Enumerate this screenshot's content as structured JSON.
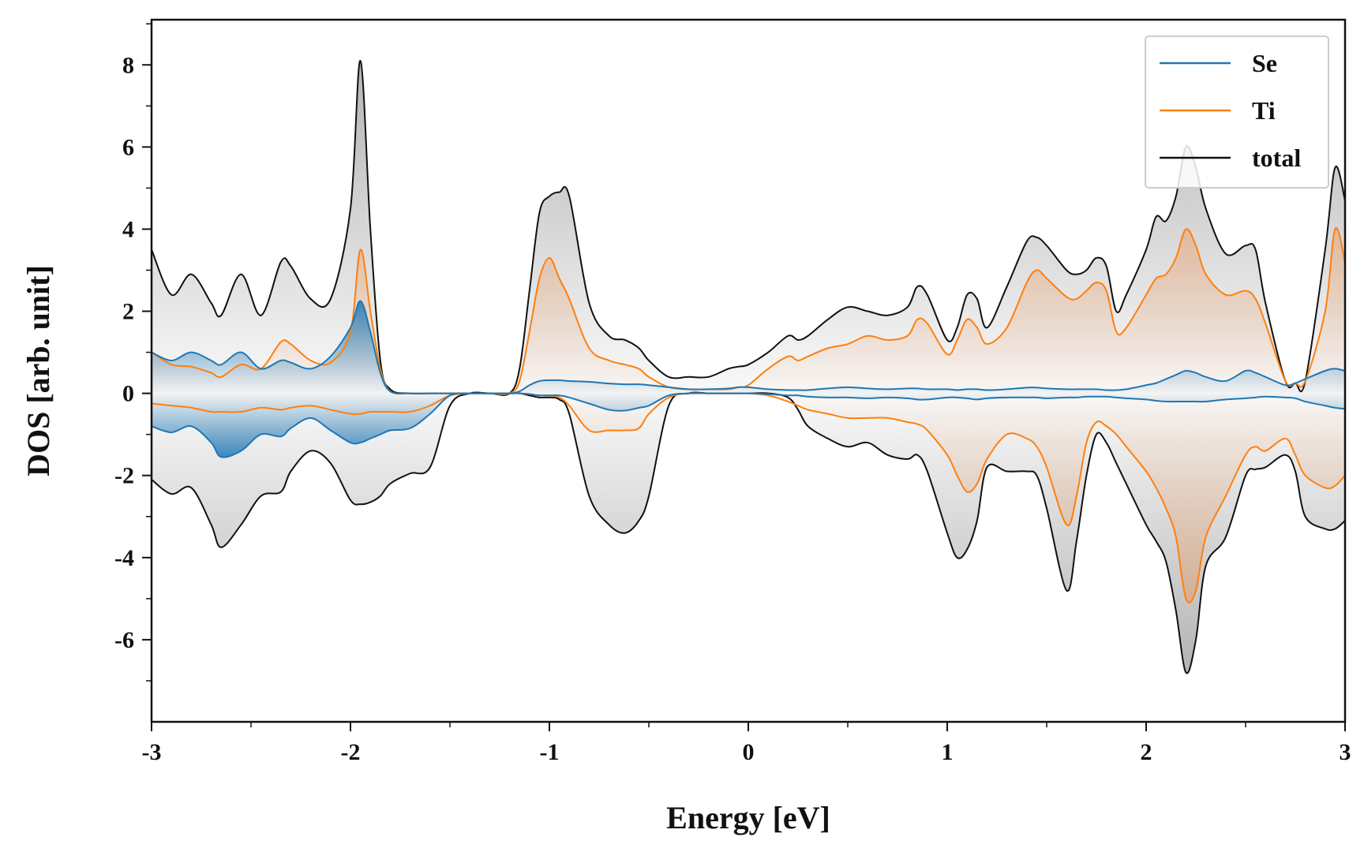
{
  "chart_data": {
    "type": "line",
    "title": "",
    "xlabel": "Energy [eV]",
    "ylabel": "DOS [arb. unit]",
    "xlim": [
      -3,
      3
    ],
    "ylim": [
      -8,
      9.1
    ],
    "xticks": [
      -3,
      -2,
      -1,
      0,
      1,
      2,
      3
    ],
    "xtick_labels": [
      "-3",
      "-2",
      "-1",
      "0",
      "1",
      "2",
      "3"
    ],
    "yticks": [
      -6,
      -4,
      -2,
      0,
      2,
      4,
      6,
      8
    ],
    "ytick_labels": [
      "-6",
      "-4",
      "-2",
      "0",
      "2",
      "4",
      "6",
      "8"
    ],
    "grid": false,
    "legend_position": "top-right",
    "x": [
      -3.0,
      -2.9,
      -2.8,
      -2.7,
      -2.65,
      -2.55,
      -2.45,
      -2.35,
      -2.3,
      -2.2,
      -2.1,
      -2.0,
      -1.95,
      -1.9,
      -1.85,
      -1.8,
      -1.7,
      -1.6,
      -1.5,
      -1.4,
      -1.3,
      -1.2,
      -1.15,
      -1.1,
      -1.05,
      -1.0,
      -0.95,
      -0.9,
      -0.8,
      -0.7,
      -0.62,
      -0.55,
      -0.5,
      -0.4,
      -0.3,
      -0.2,
      -0.1,
      -0.05,
      0.0,
      0.1,
      0.2,
      0.25,
      0.3,
      0.4,
      0.5,
      0.6,
      0.7,
      0.8,
      0.85,
      0.9,
      1.0,
      1.05,
      1.1,
      1.15,
      1.2,
      1.3,
      1.4,
      1.45,
      1.5,
      1.6,
      1.65,
      1.7,
      1.75,
      1.8,
      1.85,
      1.9,
      2.0,
      2.05,
      2.1,
      2.15,
      2.2,
      2.25,
      2.3,
      2.4,
      2.5,
      2.55,
      2.6,
      2.7,
      2.75,
      2.8,
      2.9,
      2.95,
      3.0
    ],
    "series": [
      {
        "name": "Se",
        "color": "#1f77b4",
        "up": [
          1.0,
          0.8,
          1.0,
          0.8,
          0.7,
          1.0,
          0.6,
          0.8,
          0.75,
          0.6,
          0.9,
          1.6,
          2.25,
          1.5,
          0.5,
          0.05,
          0.0,
          0.0,
          0.0,
          0.0,
          0.0,
          0.0,
          0.05,
          0.2,
          0.3,
          0.32,
          0.32,
          0.3,
          0.28,
          0.24,
          0.22,
          0.22,
          0.2,
          0.15,
          0.1,
          0.1,
          0.12,
          0.15,
          0.15,
          0.1,
          0.08,
          0.08,
          0.08,
          0.12,
          0.15,
          0.12,
          0.1,
          0.12,
          0.12,
          0.1,
          0.1,
          0.08,
          0.1,
          0.1,
          0.08,
          0.1,
          0.14,
          0.14,
          0.12,
          0.1,
          0.1,
          0.1,
          0.1,
          0.08,
          0.08,
          0.1,
          0.2,
          0.25,
          0.35,
          0.45,
          0.55,
          0.5,
          0.4,
          0.3,
          0.55,
          0.5,
          0.4,
          0.2,
          0.25,
          0.35,
          0.55,
          0.6,
          0.55
        ],
        "down": [
          -0.8,
          -0.95,
          -0.8,
          -1.2,
          -1.55,
          -1.4,
          -1.0,
          -1.05,
          -0.85,
          -0.6,
          -0.9,
          -1.2,
          -1.2,
          -1.1,
          -1.0,
          -0.9,
          -0.85,
          -0.5,
          -0.05,
          0.0,
          0.0,
          0.0,
          0.0,
          -0.02,
          -0.05,
          -0.05,
          -0.05,
          -0.1,
          -0.25,
          -0.4,
          -0.42,
          -0.35,
          -0.3,
          -0.05,
          0.0,
          0.0,
          0.0,
          0.0,
          0.0,
          -0.02,
          -0.05,
          -0.05,
          -0.08,
          -0.1,
          -0.1,
          -0.12,
          -0.1,
          -0.12,
          -0.15,
          -0.15,
          -0.1,
          -0.1,
          -0.12,
          -0.15,
          -0.12,
          -0.1,
          -0.1,
          -0.1,
          -0.12,
          -0.1,
          -0.1,
          -0.08,
          -0.08,
          -0.08,
          -0.1,
          -0.12,
          -0.15,
          -0.18,
          -0.2,
          -0.2,
          -0.2,
          -0.2,
          -0.2,
          -0.15,
          -0.12,
          -0.1,
          -0.08,
          -0.1,
          -0.12,
          -0.2,
          -0.3,
          -0.35,
          -0.38
        ]
      },
      {
        "name": "Ti",
        "color": "#ff7f0e",
        "up": [
          1.0,
          0.7,
          0.65,
          0.5,
          0.4,
          0.7,
          0.6,
          1.25,
          1.2,
          0.8,
          0.75,
          1.5,
          3.5,
          2.0,
          0.6,
          0.05,
          0.0,
          0.0,
          0.0,
          0.0,
          0.0,
          0.0,
          0.3,
          1.5,
          2.8,
          3.3,
          2.8,
          2.3,
          1.1,
          0.8,
          0.7,
          0.6,
          0.4,
          0.15,
          0.1,
          0.1,
          0.1,
          0.15,
          0.2,
          0.6,
          0.9,
          0.8,
          0.9,
          1.1,
          1.2,
          1.4,
          1.3,
          1.4,
          1.8,
          1.7,
          0.95,
          1.3,
          1.8,
          1.6,
          1.2,
          1.6,
          2.7,
          3.0,
          2.8,
          2.35,
          2.3,
          2.5,
          2.7,
          2.5,
          1.5,
          1.6,
          2.4,
          2.8,
          2.9,
          3.3,
          4.0,
          3.6,
          2.9,
          2.4,
          2.5,
          2.3,
          1.7,
          0.3,
          0.25,
          0.3,
          2.0,
          4.0,
          3.2
        ],
        "down": [
          -0.25,
          -0.3,
          -0.35,
          -0.45,
          -0.45,
          -0.45,
          -0.35,
          -0.4,
          -0.35,
          -0.3,
          -0.4,
          -0.5,
          -0.5,
          -0.45,
          -0.45,
          -0.45,
          -0.45,
          -0.3,
          -0.05,
          0.0,
          0.0,
          0.0,
          0.0,
          -0.02,
          -0.05,
          -0.05,
          -0.1,
          -0.3,
          -0.9,
          -0.9,
          -0.9,
          -0.85,
          -0.5,
          -0.1,
          0.0,
          0.0,
          0.0,
          0.0,
          0.0,
          -0.05,
          -0.2,
          -0.3,
          -0.4,
          -0.5,
          -0.6,
          -0.6,
          -0.6,
          -0.7,
          -0.75,
          -0.9,
          -1.5,
          -2.0,
          -2.4,
          -2.2,
          -1.6,
          -1.0,
          -1.1,
          -1.3,
          -1.8,
          -3.2,
          -2.5,
          -1.2,
          -0.7,
          -0.8,
          -1.0,
          -1.3,
          -1.9,
          -2.3,
          -2.8,
          -3.5,
          -5.0,
          -4.8,
          -3.5,
          -2.5,
          -1.5,
          -1.3,
          -1.4,
          -1.1,
          -1.5,
          -2.0,
          -2.3,
          -2.25,
          -2.0
        ]
      },
      {
        "name": "total",
        "color": "#111111",
        "up": [
          3.5,
          2.4,
          2.9,
          2.2,
          1.9,
          2.9,
          1.9,
          3.2,
          3.1,
          2.3,
          2.3,
          4.5,
          8.1,
          4.0,
          0.8,
          0.1,
          0.0,
          0.0,
          0.0,
          0.0,
          0.0,
          0.0,
          0.6,
          2.5,
          4.4,
          4.8,
          4.9,
          4.8,
          2.2,
          1.4,
          1.3,
          1.1,
          0.8,
          0.4,
          0.4,
          0.4,
          0.6,
          0.65,
          0.7,
          1.0,
          1.4,
          1.3,
          1.4,
          1.8,
          2.1,
          2.0,
          1.9,
          2.1,
          2.6,
          2.4,
          1.3,
          1.6,
          2.4,
          2.3,
          1.6,
          2.6,
          3.7,
          3.8,
          3.6,
          3.0,
          2.9,
          3.0,
          3.3,
          3.1,
          2.0,
          2.4,
          3.5,
          4.3,
          4.2,
          4.8,
          6.0,
          5.5,
          4.5,
          3.4,
          3.6,
          3.5,
          2.2,
          0.3,
          0.25,
          0.3,
          3.5,
          5.5,
          4.7
        ],
        "down": [
          -2.1,
          -2.45,
          -2.3,
          -3.2,
          -3.75,
          -3.2,
          -2.5,
          -2.4,
          -1.9,
          -1.4,
          -1.7,
          -2.6,
          -2.7,
          -2.65,
          -2.5,
          -2.2,
          -1.95,
          -1.8,
          -0.3,
          0.0,
          0.0,
          0.0,
          0.0,
          -0.05,
          -0.1,
          -0.1,
          -0.15,
          -0.5,
          -2.5,
          -3.2,
          -3.4,
          -3.1,
          -2.5,
          -0.3,
          0.0,
          0.0,
          0.0,
          0.0,
          0.0,
          0.0,
          -0.1,
          -0.4,
          -0.8,
          -1.1,
          -1.3,
          -1.2,
          -1.5,
          -1.6,
          -1.5,
          -1.9,
          -3.4,
          -4.0,
          -3.8,
          -3.1,
          -1.8,
          -1.9,
          -1.9,
          -2.0,
          -2.8,
          -4.8,
          -3.6,
          -2.0,
          -1.0,
          -1.2,
          -1.7,
          -2.2,
          -3.2,
          -3.6,
          -4.1,
          -5.3,
          -6.8,
          -6.0,
          -4.2,
          -3.5,
          -2.0,
          -1.85,
          -1.8,
          -1.5,
          -1.9,
          -3.0,
          -3.3,
          -3.3,
          -3.1
        ]
      }
    ]
  }
}
